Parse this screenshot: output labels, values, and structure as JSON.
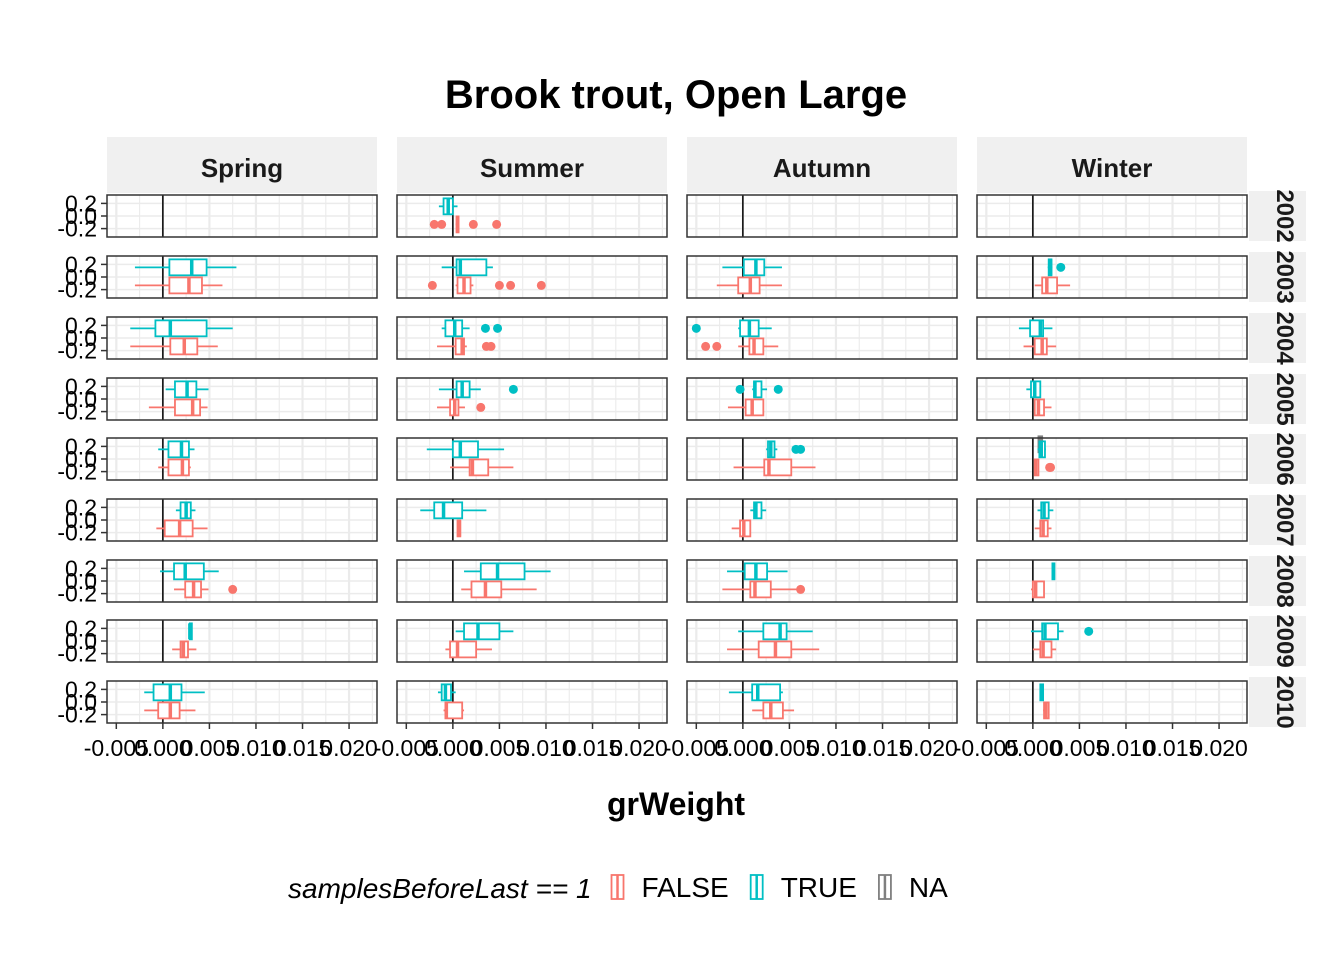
{
  "chart_data": {
    "type": "boxplot",
    "title": "Brook trout, Open Large",
    "xlabel": "grWeight",
    "ylabel": "",
    "xlim": [
      -0.006,
      0.023
    ],
    "x_ticks": [
      -0.005,
      0,
      0.005,
      0.01,
      0.015,
      0.02
    ],
    "x_tick_labels": [
      "-0.005",
      "0.000",
      "0.005",
      "0.010",
      "0.015",
      "0.020"
    ],
    "y_tick_labels": [
      "0.2",
      "0.0",
      "-0.2"
    ],
    "col_facets": [
      "Spring",
      "Summer",
      "Autumn",
      "Winter"
    ],
    "row_facets": [
      "2002",
      "2003",
      "2004",
      "2005",
      "2006",
      "2007",
      "2008",
      "2009",
      "2010"
    ],
    "grid": true,
    "legend": {
      "title": "samplesBeforeLast == 1",
      "position": "bottom",
      "entries": [
        {
          "label": "FALSE",
          "color": "#F8766D"
        },
        {
          "label": "TRUE",
          "color": "#00BFC4"
        },
        {
          "label": "NA",
          "color": "#7F7F7F"
        }
      ]
    },
    "boxes": [
      {
        "season": "Spring",
        "year": "2003",
        "group": "TRUE",
        "stats": [
          -0.003,
          0.0007,
          0.0031,
          0.0047,
          0.0079
        ],
        "outliers": []
      },
      {
        "season": "Spring",
        "year": "2003",
        "group": "FALSE",
        "stats": [
          -0.003,
          0.0007,
          0.0028,
          0.0042,
          0.0064
        ],
        "outliers": []
      },
      {
        "season": "Spring",
        "year": "2004",
        "group": "TRUE",
        "stats": [
          -0.0035,
          -0.0008,
          0.0008,
          0.0047,
          0.0075
        ],
        "outliers": []
      },
      {
        "season": "Spring",
        "year": "2004",
        "group": "FALSE",
        "stats": [
          -0.0035,
          0.0008,
          0.0023,
          0.0037,
          0.0059
        ],
        "outliers": []
      },
      {
        "season": "Spring",
        "year": "2005",
        "group": "TRUE",
        "stats": [
          0.0003,
          0.0013,
          0.0026,
          0.0036,
          0.0049
        ],
        "outliers": []
      },
      {
        "season": "Spring",
        "year": "2005",
        "group": "FALSE",
        "stats": [
          -0.0015,
          0.0013,
          0.0032,
          0.004,
          0.0048
        ],
        "outliers": []
      },
      {
        "season": "Spring",
        "year": "2006",
        "group": "TRUE",
        "stats": [
          -0.0005,
          0.0006,
          0.002,
          0.0028,
          0.0034
        ],
        "outliers": []
      },
      {
        "season": "Spring",
        "year": "2006",
        "group": "FALSE",
        "stats": [
          -0.0005,
          0.0006,
          0.0021,
          0.0028,
          0.003
        ],
        "outliers": []
      },
      {
        "season": "Spring",
        "year": "2007",
        "group": "TRUE",
        "stats": [
          0.0014,
          0.0019,
          0.0025,
          0.003,
          0.0035
        ],
        "outliers": []
      },
      {
        "season": "Spring",
        "year": "2007",
        "group": "FALSE",
        "stats": [
          -0.0007,
          0.0002,
          0.0018,
          0.0032,
          0.0048
        ],
        "outliers": []
      },
      {
        "season": "Spring",
        "year": "2008",
        "group": "TRUE",
        "stats": [
          -0.0003,
          0.0012,
          0.0024,
          0.0044,
          0.006
        ],
        "outliers": []
      },
      {
        "season": "Spring",
        "year": "2008",
        "group": "FALSE",
        "stats": [
          0.0012,
          0.0024,
          0.0033,
          0.0041,
          0.0049
        ],
        "outliers": [
          0.0075
        ]
      },
      {
        "season": "Spring",
        "year": "2009",
        "group": "TRUE",
        "stats": [
          0.0029,
          0.0029,
          0.0029,
          0.003,
          0.003
        ],
        "outliers": []
      },
      {
        "season": "Spring",
        "year": "2009",
        "group": "FALSE",
        "stats": [
          0.001,
          0.0019,
          0.0022,
          0.0027,
          0.0036
        ],
        "outliers": []
      },
      {
        "season": "Spring",
        "year": "2010",
        "group": "TRUE",
        "stats": [
          -0.002,
          -0.001,
          0.0008,
          0.002,
          0.0045
        ],
        "outliers": []
      },
      {
        "season": "Spring",
        "year": "2010",
        "group": "FALSE",
        "stats": [
          -0.002,
          -0.0005,
          0.0008,
          0.0018,
          0.0035
        ],
        "outliers": []
      },
      {
        "season": "Summer",
        "year": "2002",
        "group": "TRUE",
        "stats": [
          -0.0015,
          -0.001,
          -0.0005,
          0.0,
          0.0005
        ],
        "outliers": []
      },
      {
        "season": "Summer",
        "year": "2002",
        "group": "FALSE",
        "stats": [
          0.0003,
          0.0004,
          0.0005,
          0.0006,
          0.0007
        ],
        "outliers": [
          -0.002,
          -0.0012,
          0.0022,
          0.0047
        ]
      },
      {
        "season": "Summer",
        "year": "2003",
        "group": "TRUE",
        "stats": [
          -0.0012,
          0.0004,
          0.0008,
          0.0036,
          0.0043
        ],
        "outliers": []
      },
      {
        "season": "Summer",
        "year": "2003",
        "group": "FALSE",
        "stats": [
          0.0003,
          0.0005,
          0.0012,
          0.0019,
          0.0022
        ],
        "outliers": [
          -0.0022,
          0.005,
          0.0062,
          0.0095
        ]
      },
      {
        "season": "Summer",
        "year": "2004",
        "group": "TRUE",
        "stats": [
          -0.0012,
          -0.0008,
          0.0002,
          0.001,
          0.0018
        ],
        "outliers": [
          0.0035,
          0.0048
        ]
      },
      {
        "season": "Summer",
        "year": "2004",
        "group": "FALSE",
        "stats": [
          -0.0017,
          0.0003,
          0.001,
          0.0012,
          0.0015
        ],
        "outliers": [
          0.0036,
          0.0041
        ]
      },
      {
        "season": "Summer",
        "year": "2005",
        "group": "TRUE",
        "stats": [
          -0.0015,
          0.0004,
          0.001,
          0.0018,
          0.003
        ],
        "outliers": [
          0.0065
        ]
      },
      {
        "season": "Summer",
        "year": "2005",
        "group": "FALSE",
        "stats": [
          -0.0017,
          -0.0003,
          0.0002,
          0.0006,
          0.0013
        ],
        "outliers": [
          0.003
        ]
      },
      {
        "season": "Summer",
        "year": "2006",
        "group": "TRUE",
        "stats": [
          -0.0028,
          0.0,
          0.0008,
          0.0027,
          0.0055
        ],
        "outliers": []
      },
      {
        "season": "Summer",
        "year": "2006",
        "group": "FALSE",
        "stats": [
          -0.0003,
          0.0018,
          0.0021,
          0.0038,
          0.0065
        ],
        "outliers": []
      },
      {
        "season": "Summer",
        "year": "2007",
        "group": "TRUE",
        "stats": [
          -0.0035,
          -0.002,
          -0.001,
          0.001,
          0.0036
        ],
        "outliers": []
      },
      {
        "season": "Summer",
        "year": "2007",
        "group": "FALSE",
        "stats": [
          0.0005,
          0.0005,
          0.0007,
          0.0008,
          0.0008
        ],
        "outliers": []
      },
      {
        "season": "Summer",
        "year": "2008",
        "group": "TRUE",
        "stats": [
          0.0012,
          0.003,
          0.0048,
          0.0077,
          0.0105
        ],
        "outliers": []
      },
      {
        "season": "Summer",
        "year": "2008",
        "group": "FALSE",
        "stats": [
          0.0009,
          0.002,
          0.0035,
          0.0052,
          0.009
        ],
        "outliers": []
      },
      {
        "season": "Summer",
        "year": "2009",
        "group": "TRUE",
        "stats": [
          0.0003,
          0.0012,
          0.0027,
          0.005,
          0.0065
        ],
        "outliers": []
      },
      {
        "season": "Summer",
        "year": "2009",
        "group": "FALSE",
        "stats": [
          -0.0008,
          -0.0003,
          0.0005,
          0.0025,
          0.0042
        ],
        "outliers": []
      },
      {
        "season": "Summer",
        "year": "2010",
        "group": "TRUE",
        "stats": [
          -0.0016,
          -0.0012,
          -0.0008,
          -0.0002,
          0.0003
        ],
        "outliers": []
      },
      {
        "season": "Summer",
        "year": "2010",
        "group": "FALSE",
        "stats": [
          -0.001,
          -0.0008,
          -0.0007,
          0.001,
          0.0012
        ],
        "outliers": []
      },
      {
        "season": "Autumn",
        "year": "2003",
        "group": "TRUE",
        "stats": [
          -0.0022,
          0.0001,
          0.0014,
          0.0023,
          0.0042
        ],
        "outliers": []
      },
      {
        "season": "Autumn",
        "year": "2003",
        "group": "FALSE",
        "stats": [
          -0.0028,
          -0.0005,
          0.0008,
          0.0018,
          0.0042
        ],
        "outliers": []
      },
      {
        "season": "Autumn",
        "year": "2004",
        "group": "TRUE",
        "stats": [
          -0.0005,
          -0.0003,
          0.0007,
          0.0017,
          0.0031
        ],
        "outliers": [
          -0.005
        ]
      },
      {
        "season": "Autumn",
        "year": "2004",
        "group": "FALSE",
        "stats": [
          -0.0005,
          0.0007,
          0.0012,
          0.0022,
          0.0038
        ],
        "outliers": [
          -0.004,
          -0.0028
        ]
      },
      {
        "season": "Autumn",
        "year": "2005",
        "group": "TRUE",
        "stats": [
          0.001,
          0.0012,
          0.0013,
          0.002,
          0.0026
        ],
        "outliers": [
          -0.0003,
          0.0038
        ]
      },
      {
        "season": "Autumn",
        "year": "2005",
        "group": "FALSE",
        "stats": [
          -0.0016,
          0.0003,
          0.001,
          0.0022,
          0.0022
        ],
        "outliers": []
      },
      {
        "season": "Autumn",
        "year": "2006",
        "group": "TRUE",
        "stats": [
          0.0025,
          0.0027,
          0.003,
          0.0034,
          0.0037
        ],
        "outliers": [
          0.0057,
          0.0062
        ]
      },
      {
        "season": "Autumn",
        "year": "2006",
        "group": "FALSE",
        "stats": [
          -0.001,
          0.0023,
          0.0028,
          0.0052,
          0.0078
        ],
        "outliers": []
      },
      {
        "season": "Autumn",
        "year": "2007",
        "group": "TRUE",
        "stats": [
          0.0008,
          0.0012,
          0.0014,
          0.002,
          0.0025
        ],
        "outliers": []
      },
      {
        "season": "Autumn",
        "year": "2007",
        "group": "FALSE",
        "stats": [
          -0.0012,
          -0.0003,
          0.0001,
          0.0008,
          0.0008
        ],
        "outliers": []
      },
      {
        "season": "Autumn",
        "year": "2008",
        "group": "TRUE",
        "stats": [
          -0.0017,
          0.0002,
          0.0014,
          0.0026,
          0.0048
        ],
        "outliers": []
      },
      {
        "season": "Autumn",
        "year": "2008",
        "group": "FALSE",
        "stats": [
          -0.0022,
          0.0008,
          0.0013,
          0.003,
          0.0058
        ],
        "outliers": [
          0.0062
        ]
      },
      {
        "season": "Autumn",
        "year": "2009",
        "group": "TRUE",
        "stats": [
          -0.0005,
          0.0022,
          0.004,
          0.0047,
          0.0075
        ],
        "outliers": []
      },
      {
        "season": "Autumn",
        "year": "2009",
        "group": "FALSE",
        "stats": [
          -0.0017,
          0.0017,
          0.0035,
          0.0052,
          0.0082
        ],
        "outliers": []
      },
      {
        "season": "Autumn",
        "year": "2010",
        "group": "TRUE",
        "stats": [
          -0.0015,
          0.001,
          0.0016,
          0.004,
          0.0043
        ],
        "outliers": []
      },
      {
        "season": "Autumn",
        "year": "2010",
        "group": "FALSE",
        "stats": [
          0.001,
          0.0022,
          0.003,
          0.0043,
          0.0055
        ],
        "outliers": []
      },
      {
        "season": "Winter",
        "year": "2003",
        "group": "TRUE",
        "stats": [
          0.0016,
          0.0017,
          0.0019,
          0.002,
          0.0021
        ],
        "outliers": [
          0.003
        ]
      },
      {
        "season": "Winter",
        "year": "2003",
        "group": "FALSE",
        "stats": [
          0.0002,
          0.001,
          0.0015,
          0.0026,
          0.004
        ],
        "outliers": []
      },
      {
        "season": "Winter",
        "year": "2004",
        "group": "TRUE",
        "stats": [
          -0.0015,
          -0.0003,
          0.0008,
          0.0011,
          0.0021
        ],
        "outliers": []
      },
      {
        "season": "Winter",
        "year": "2004",
        "group": "FALSE",
        "stats": [
          -0.001,
          0.0002,
          0.001,
          0.0015,
          0.0025
        ],
        "outliers": []
      },
      {
        "season": "Winter",
        "year": "2005",
        "group": "TRUE",
        "stats": [
          -0.0007,
          -0.0002,
          0.0002,
          0.0008,
          0.0008
        ],
        "outliers": []
      },
      {
        "season": "Winter",
        "year": "2005",
        "group": "FALSE",
        "stats": [
          0.0002,
          0.0002,
          0.0006,
          0.0012,
          0.002
        ],
        "outliers": []
      },
      {
        "season": "Winter",
        "year": "2006",
        "group": "NA",
        "stats": [
          0.0006,
          0.0006,
          0.0008,
          0.001,
          0.001
        ],
        "outliers": []
      },
      {
        "season": "Winter",
        "year": "2006",
        "group": "TRUE",
        "stats": [
          0.0005,
          0.0007,
          0.0009,
          0.0013,
          0.0014
        ],
        "outliers": []
      },
      {
        "season": "Winter",
        "year": "2006",
        "group": "FALSE",
        "stats": [
          0.0001,
          0.0002,
          0.0003,
          0.0006,
          0.0006
        ],
        "outliers": [
          0.0018,
          0.0019
        ]
      },
      {
        "season": "Winter",
        "year": "2007",
        "group": "TRUE",
        "stats": [
          0.0005,
          0.0009,
          0.0012,
          0.0017,
          0.0022
        ],
        "outliers": []
      },
      {
        "season": "Winter",
        "year": "2007",
        "group": "FALSE",
        "stats": [
          0.0002,
          0.0008,
          0.0011,
          0.0016,
          0.002
        ],
        "outliers": []
      },
      {
        "season": "Winter",
        "year": "2008",
        "group": "TRUE",
        "stats": [
          0.0021,
          0.0021,
          0.0022,
          0.0022,
          0.0023
        ],
        "outliers": []
      },
      {
        "season": "Winter",
        "year": "2008",
        "group": "FALSE",
        "stats": [
          -0.0002,
          0.0,
          0.0003,
          0.0012,
          0.0012
        ],
        "outliers": []
      },
      {
        "season": "Winter",
        "year": "2009",
        "group": "TRUE",
        "stats": [
          -0.0002,
          0.001,
          0.0013,
          0.0027,
          0.0033
        ],
        "outliers": [
          0.006
        ]
      },
      {
        "season": "Winter",
        "year": "2009",
        "group": "FALSE",
        "stats": [
          0.0,
          0.0008,
          0.0011,
          0.002,
          0.0025
        ],
        "outliers": []
      },
      {
        "season": "Winter",
        "year": "2010",
        "group": "TRUE",
        "stats": [
          0.0008,
          0.0008,
          0.0009,
          0.0011,
          0.0011
        ],
        "outliers": []
      },
      {
        "season": "Winter",
        "year": "2010",
        "group": "FALSE",
        "stats": [
          0.0011,
          0.0012,
          0.0014,
          0.0017,
          0.0017
        ],
        "outliers": []
      }
    ]
  }
}
